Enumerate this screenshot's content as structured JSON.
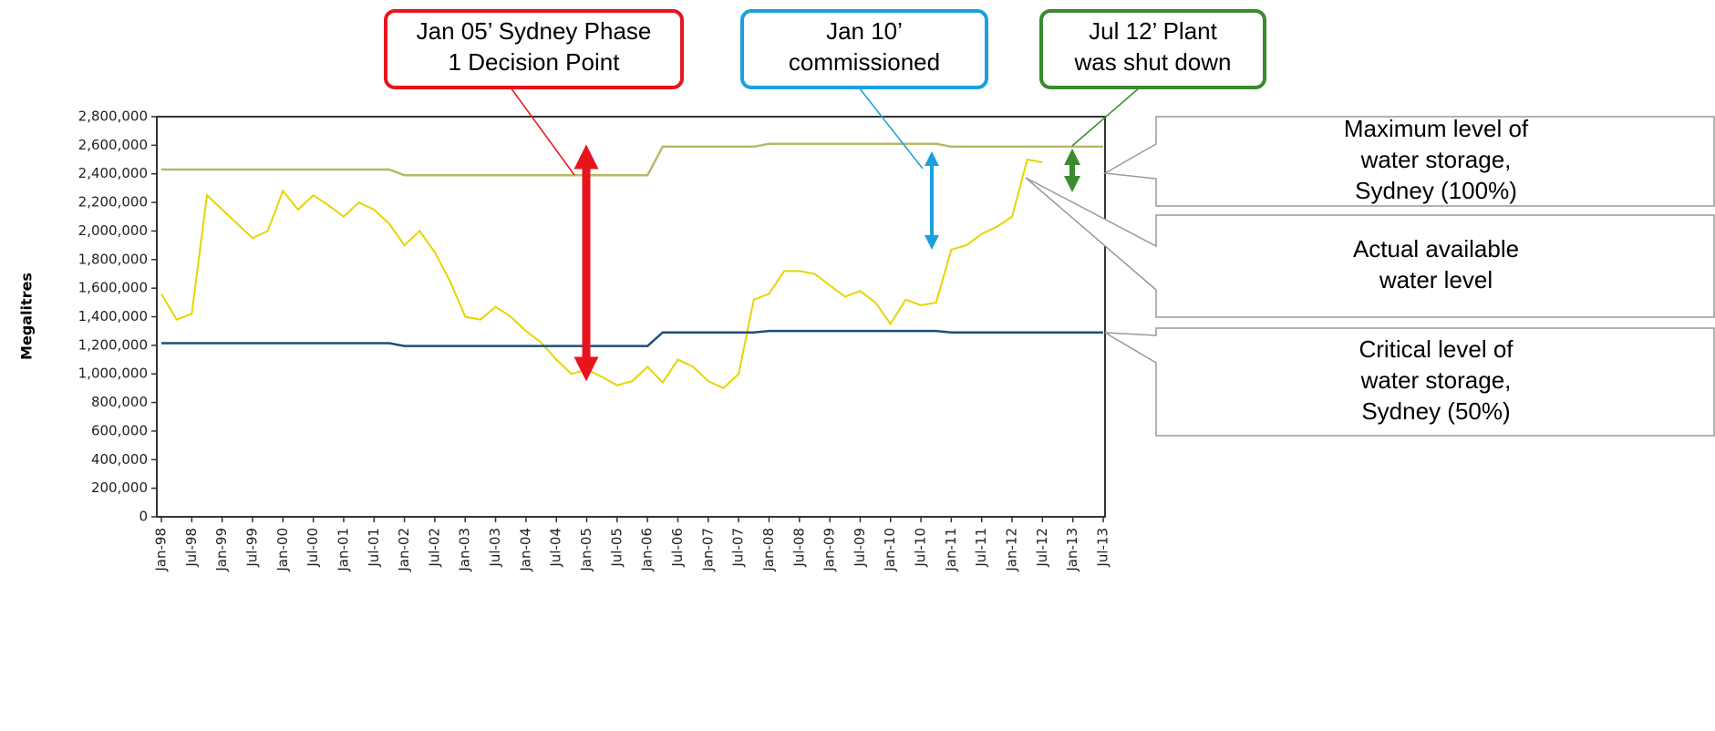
{
  "chart_data": {
    "type": "line",
    "y_label": "Megalitres",
    "categories": [
      "Jan-98",
      null,
      "Jul-98",
      null,
      "Jan-99",
      null,
      "Jul-99",
      null,
      "Jan-00",
      null,
      "Jul-00",
      null,
      "Jan-01",
      null,
      "Jul-01",
      null,
      "Jan-02",
      null,
      "Jul-02",
      null,
      "Jan-03",
      null,
      "Jul-03",
      null,
      "Jan-04",
      null,
      "Jul-04",
      null,
      "Jan-05",
      null,
      "Jul-05",
      null,
      "Jan-06",
      null,
      "Jul-06",
      null,
      "Jan-07",
      null,
      "Jul-07",
      null,
      "Jan-08",
      null,
      "Jul-08",
      null,
      "Jan-09",
      null,
      "Jul-09",
      null,
      "Jan-10",
      null,
      "Jul-10",
      null,
      "Jan-11",
      null,
      "Jul-11",
      null,
      "Jan-12",
      null,
      "Jul-12",
      null,
      "Jan-13",
      null,
      "Jul-13"
    ],
    "series": [
      {
        "name": "Maximum level of water storage, Sydney (100%)",
        "color": "#b8b86a",
        "values": [
          2430000,
          2430000,
          2430000,
          2430000,
          2430000,
          2430000,
          2430000,
          2430000,
          2430000,
          2430000,
          2430000,
          2430000,
          2430000,
          2430000,
          2430000,
          2430000,
          2390000,
          2390000,
          2390000,
          2390000,
          2390000,
          2390000,
          2390000,
          2390000,
          2390000,
          2390000,
          2390000,
          2390000,
          2390000,
          2390000,
          2390000,
          2390000,
          2390000,
          2590000,
          2590000,
          2590000,
          2590000,
          2590000,
          2590000,
          2590000,
          2610000,
          2610000,
          2610000,
          2610000,
          2610000,
          2610000,
          2610000,
          2610000,
          2610000,
          2610000,
          2610000,
          2610000,
          2590000,
          2590000,
          2590000,
          2590000,
          2590000,
          2590000,
          2590000,
          2590000,
          2590000,
          2590000,
          2590000
        ]
      },
      {
        "name": "Actual available water level",
        "color": "#e6d500",
        "values": [
          1560000,
          1380000,
          1420000,
          2250000,
          2150000,
          2050000,
          1950000,
          2000000,
          2280000,
          2150000,
          2250000,
          2180000,
          2100000,
          2200000,
          2150000,
          2050000,
          1900000,
          2000000,
          1850000,
          1650000,
          1400000,
          1380000,
          1470000,
          1400000,
          1300000,
          1220000,
          1100000,
          1000000,
          1030000,
          980000,
          920000,
          950000,
          1050000,
          940000,
          1100000,
          1050000,
          950000,
          900000,
          1000000,
          1520000,
          1560000,
          1720000,
          1720000,
          1700000,
          1620000,
          1540000,
          1580000,
          1500000,
          1350000,
          1520000,
          1480000,
          1500000,
          1870000,
          1900000,
          1980000,
          2030000,
          2100000,
          2500000,
          2480000,
          null,
          null,
          null,
          null
        ]
      },
      {
        "name": "Critical level of water storage, Sydney (50%)",
        "color": "#1f4e79",
        "values": [
          1215000,
          1215000,
          1215000,
          1215000,
          1215000,
          1215000,
          1215000,
          1215000,
          1215000,
          1215000,
          1215000,
          1215000,
          1215000,
          1215000,
          1215000,
          1215000,
          1195000,
          1195000,
          1195000,
          1195000,
          1195000,
          1195000,
          1195000,
          1195000,
          1195000,
          1195000,
          1195000,
          1195000,
          1195000,
          1195000,
          1195000,
          1195000,
          1195000,
          1290000,
          1290000,
          1290000,
          1290000,
          1290000,
          1290000,
          1290000,
          1300000,
          1300000,
          1300000,
          1300000,
          1300000,
          1300000,
          1300000,
          1300000,
          1300000,
          1300000,
          1300000,
          1300000,
          1290000,
          1290000,
          1290000,
          1290000,
          1290000,
          1290000,
          1290000,
          1290000,
          1290000,
          1290000,
          1290000
        ]
      }
    ],
    "ylim": [
      0,
      2800000
    ],
    "yticks": [
      0,
      {
        "value": 200000,
        "label": "200,000"
      },
      {
        "value": 400000,
        "label": "400,000"
      },
      {
        "value": 600000,
        "label": "600,000"
      },
      {
        "value": 800000,
        "label": "800,000"
      },
      {
        "value": 1000000,
        "label": "1,000,000"
      },
      {
        "value": 1200000,
        "label": "1,200,000"
      },
      {
        "value": 1400000,
        "label": "1,400,000"
      },
      {
        "value": 1600000,
        "label": "1,600,000"
      },
      {
        "value": 1800000,
        "label": "1,800,000"
      },
      {
        "value": 2000000,
        "label": "2,000,000"
      },
      {
        "value": 2200000,
        "label": "2,200,000"
      },
      {
        "value": 2400000,
        "label": "2,400,000"
      },
      {
        "value": 2600000,
        "label": "2,600,000"
      },
      {
        "value": 2800000,
        "label": "2,800,000"
      }
    ],
    "annotations": [
      {
        "lines": [
          "Jan 05’ Sydney Phase",
          "1 Decision Point"
        ],
        "color": "#e8141c"
      },
      {
        "lines": [
          "Jan 10’",
          "commissioned"
        ],
        "color": "#1aa0dc"
      },
      {
        "lines": [
          "Jul 12’ Plant",
          "was shut down"
        ],
        "color": "#3a8a2e"
      }
    ],
    "callouts": [
      {
        "lines": [
          "Maximum level of",
          "water storage,",
          "Sydney (100%)"
        ]
      },
      {
        "lines": [
          "Actual available",
          "water level"
        ]
      },
      {
        "lines": [
          "Critical level of",
          "water storage,",
          "Sydney (50%)"
        ]
      }
    ]
  }
}
